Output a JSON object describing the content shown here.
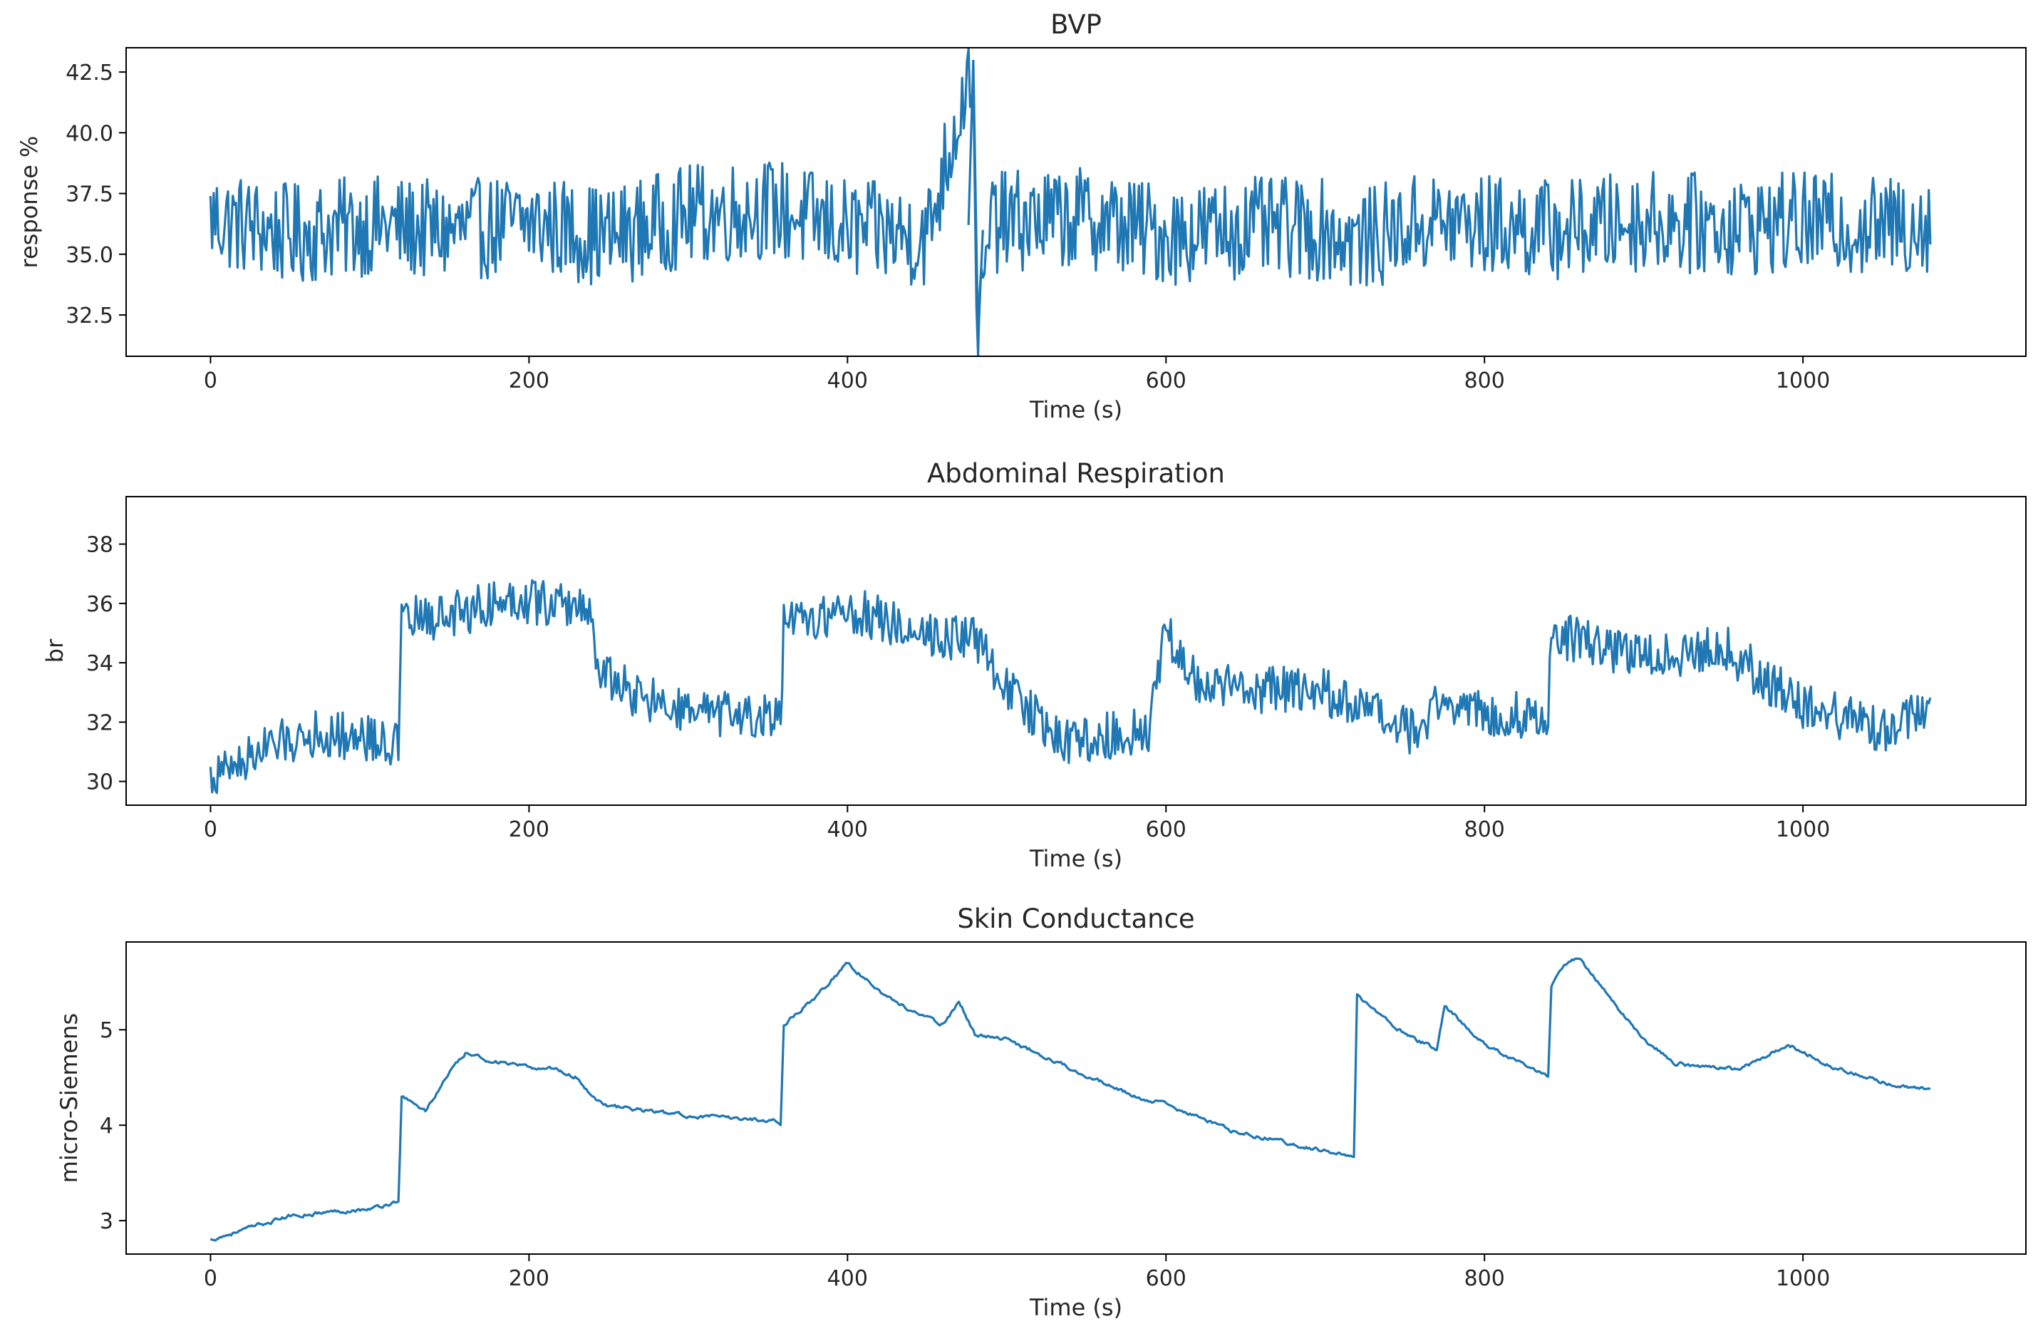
{
  "chart_data": [
    {
      "type": "line",
      "title": "BVP",
      "xlabel": "Time (s)",
      "ylabel": "response %",
      "xlim": [
        -53,
        1140
      ],
      "ylim": [
        30.8,
        43.5
      ],
      "xticks": [
        0,
        200,
        400,
        600,
        800,
        1000
      ],
      "xtick_labels": [
        "0",
        "200",
        "400",
        "600",
        "800",
        "1000"
      ],
      "yticks": [
        32.5,
        35.0,
        37.5,
        40.0,
        42.5
      ],
      "ytick_labels": [
        "32.5",
        "35.0",
        "37.5",
        "40.0",
        "42.5"
      ],
      "color": "#1f77b4",
      "x": [
        0,
        50,
        100,
        150,
        200,
        250,
        300,
        350,
        400,
        450,
        478,
        482,
        490,
        550,
        600,
        650,
        700,
        720,
        760,
        800,
        850,
        900,
        950,
        1000,
        1050,
        1080
      ],
      "y": [
        36.5,
        35.8,
        36.2,
        35.9,
        36.3,
        35.7,
        36.6,
        36.9,
        36.0,
        35.7,
        43.0,
        31.4,
        36.3,
        36.5,
        35.8,
        36.1,
        36.0,
        35.5,
        36.3,
        36.2,
        36.0,
        36.4,
        36.2,
        36.3,
        36.1,
        36.4
      ],
      "noise_amplitude": 2.1,
      "series_length": 1080
    },
    {
      "type": "line",
      "title": "Abdominal Respiration",
      "xlabel": "Time (s)",
      "ylabel": "br",
      "xlim": [
        -53,
        1140
      ],
      "ylim": [
        29.2,
        39.6
      ],
      "xticks": [
        0,
        200,
        400,
        600,
        800,
        1000
      ],
      "xtick_labels": [
        "0",
        "200",
        "400",
        "600",
        "800",
        "1000"
      ],
      "yticks": [
        30,
        32,
        34,
        36,
        38
      ],
      "ytick_labels": [
        "30",
        "32",
        "34",
        "36",
        "38"
      ],
      "color": "#1f77b4",
      "x": [
        0,
        30,
        60,
        100,
        118,
        120,
        150,
        190,
        240,
        242,
        270,
        300,
        358,
        360,
        400,
        450,
        480,
        510,
        540,
        590,
        600,
        620,
        700,
        760,
        770,
        800,
        840,
        842,
        900,
        950,
        1000,
        1050,
        1080
      ],
      "y": [
        30.1,
        31.0,
        31.6,
        31.5,
        31.2,
        35.4,
        35.6,
        36.2,
        35.8,
        33.8,
        32.8,
        32.3,
        32.1,
        35.2,
        35.8,
        35.0,
        34.8,
        32.5,
        31.3,
        31.8,
        35.2,
        33.2,
        33.0,
        31.5,
        32.8,
        32.3,
        32.2,
        35.0,
        34.2,
        34.5,
        32.5,
        31.8,
        32.3
      ],
      "noise_amplitude": 0.8,
      "series_length": 1080
    },
    {
      "type": "line",
      "title": "Skin Conductance",
      "xlabel": "Time (s)",
      "ylabel": "micro-Siemens",
      "xlim": [
        -53,
        1140
      ],
      "ylim": [
        2.65,
        5.92
      ],
      "xticks": [
        0,
        200,
        400,
        600,
        800,
        1000
      ],
      "xtick_labels": [
        "0",
        "200",
        "400",
        "600",
        "800",
        "1000"
      ],
      "yticks": [
        3,
        4,
        5
      ],
      "ytick_labels": [
        "3",
        "4",
        "5"
      ],
      "color": "#1f77b4",
      "x": [
        0,
        20,
        50,
        80,
        100,
        118,
        120,
        135,
        150,
        160,
        175,
        200,
        215,
        230,
        240,
        250,
        300,
        355,
        358,
        360,
        380,
        400,
        420,
        440,
        460,
        470,
        480,
        500,
        540,
        580,
        600,
        640,
        680,
        715,
        718,
        720,
        750,
        770,
        775,
        800,
        840,
        842,
        850,
        860,
        880,
        900,
        920,
        960,
        990,
        1020,
        1060,
        1080
      ],
      "y": [
        2.8,
        2.9,
        3.05,
        3.1,
        3.12,
        3.2,
        4.3,
        4.15,
        4.55,
        4.75,
        4.68,
        4.6,
        4.6,
        4.5,
        4.3,
        4.2,
        4.1,
        4.05,
        4.0,
        5.05,
        5.35,
        5.7,
        5.4,
        5.2,
        5.05,
        5.3,
        4.95,
        4.9,
        4.6,
        4.3,
        4.22,
        3.95,
        3.8,
        3.68,
        3.65,
        5.35,
        4.95,
        4.8,
        5.25,
        4.85,
        4.5,
        5.45,
        5.7,
        5.75,
        5.3,
        4.9,
        4.65,
        4.58,
        4.85,
        4.6,
        4.4,
        4.38
      ],
      "noise_amplitude": 0.04,
      "series_length": 1080
    }
  ]
}
